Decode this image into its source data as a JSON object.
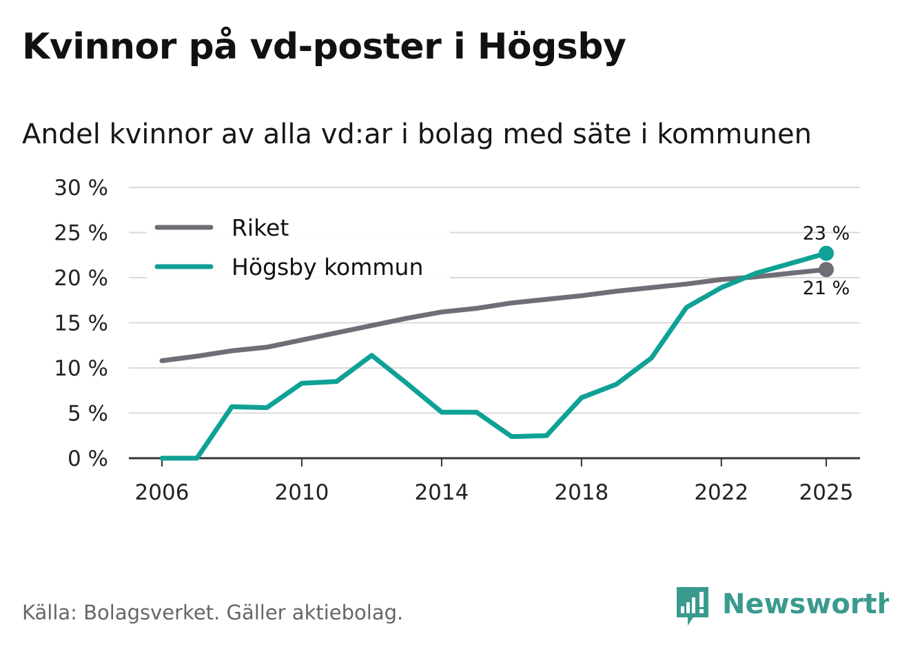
{
  "title": "Kvinnor på vd-poster i Högsby",
  "subtitle": "Andel kvinnor av alla vd:ar i bolag med säte i kommunen",
  "source": "Källa: Bolagsverket. Gäller aktiebolag.",
  "brand": {
    "name": "Newsworthy",
    "icon": "bar-chart-speech-bubble-icon",
    "color": "#3a9a8e"
  },
  "chart_data": {
    "type": "line",
    "title": "Kvinnor på vd-poster i Högsby",
    "xlabel": "",
    "ylabel": "",
    "ylim": [
      0,
      30
    ],
    "xlim": [
      2006,
      2025
    ],
    "grid": true,
    "legend_position": "top-left",
    "y_ticks": [
      {
        "value": 0,
        "label": "0 %"
      },
      {
        "value": 5,
        "label": "5 %"
      },
      {
        "value": 10,
        "label": "10 %"
      },
      {
        "value": 15,
        "label": "15 %"
      },
      {
        "value": 20,
        "label": "20 %"
      },
      {
        "value": 25,
        "label": "25 %"
      },
      {
        "value": 30,
        "label": "30 %"
      }
    ],
    "x_ticks": [
      {
        "value": 2006,
        "label": "2006"
      },
      {
        "value": 2010,
        "label": "2010"
      },
      {
        "value": 2014,
        "label": "2014"
      },
      {
        "value": 2018,
        "label": "2018"
      },
      {
        "value": 2022,
        "label": "2022"
      },
      {
        "value": 2025,
        "label": "2025"
      }
    ],
    "x": [
      2006,
      2007,
      2008,
      2009,
      2010,
      2011,
      2012,
      2013,
      2014,
      2015,
      2016,
      2017,
      2018,
      2019,
      2020,
      2021,
      2022,
      2023,
      2024,
      2025
    ],
    "series": [
      {
        "name": "Riket",
        "color": "#6f6e76",
        "values": [
          10.8,
          11.3,
          11.9,
          12.3,
          13.1,
          13.9,
          14.7,
          15.5,
          16.2,
          16.6,
          17.2,
          17.6,
          18.0,
          18.5,
          18.9,
          19.3,
          19.8,
          20.1,
          20.5,
          20.9
        ],
        "end_label": "21 %"
      },
      {
        "name": "Högsby kommun",
        "color": "#0fa196",
        "values": [
          0.0,
          0.0,
          5.7,
          5.6,
          8.3,
          8.5,
          11.4,
          8.3,
          5.1,
          5.1,
          2.4,
          2.5,
          6.7,
          8.2,
          11.1,
          16.7,
          18.9,
          20.5,
          21.6,
          22.7
        ],
        "end_label": "23 %"
      }
    ]
  }
}
